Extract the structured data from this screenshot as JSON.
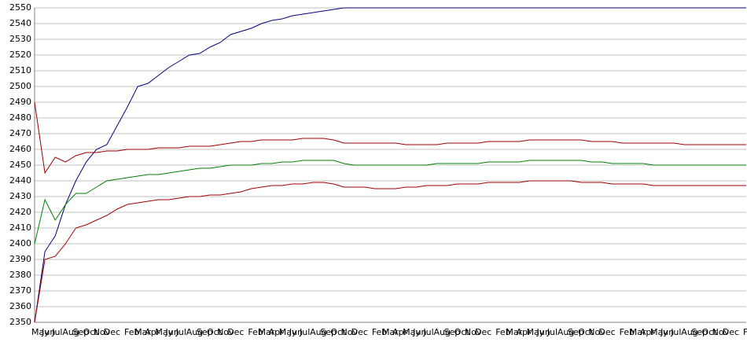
{
  "chart_data": {
    "type": "line",
    "categories": [
      "May",
      "Jun",
      "Jul",
      "Aug",
      "Sep",
      "Oct",
      "Nov",
      "Dec",
      null,
      "Feb",
      "Mar",
      "Apr",
      "May",
      "Jun",
      "Jul",
      "Aug",
      "Sep",
      "Oct",
      "Nov",
      "Dec",
      null,
      "Feb",
      "Mar",
      "Apr",
      "May",
      "Jun",
      "Jul",
      "Aug",
      "Sep",
      "Oct",
      "Nov",
      "Dec",
      null,
      "Feb",
      "Mar",
      "Apr",
      "May",
      "Jun",
      "Jul",
      "Aug",
      "Sep",
      "Oct",
      "Nov",
      "Dec",
      null,
      "Feb",
      "Mar",
      "Apr",
      "May",
      "Jun",
      "Jul",
      "Aug",
      "Sep",
      "Oct",
      "Nov",
      "Dec",
      null,
      "Feb",
      "Mar",
      "Apr",
      "May",
      "Jun",
      "Jul",
      "Aug",
      "Sep",
      "Oct",
      "Nov",
      "Dec",
      null,
      "Feb"
    ],
    "series": [
      {
        "color": "#000080",
        "values": [
          2350,
          2395,
          2405,
          2425,
          2440,
          2452,
          2460,
          2463,
          2475,
          2487,
          2500,
          2502,
          2507,
          2512,
          2516,
          2520,
          2521,
          2525,
          2528,
          2533,
          2535,
          2537,
          2540,
          2542,
          2543,
          2545,
          2546,
          2547,
          2548,
          2549,
          2550,
          2550,
          2550,
          2550,
          2550,
          2550,
          2550,
          2550,
          2550,
          2550,
          2550,
          2550,
          2550,
          2550,
          2550,
          2550,
          2550,
          2550,
          2550,
          2550,
          2550,
          2550,
          2550,
          2550,
          2550,
          2550,
          2550,
          2550,
          2550,
          2550,
          2550,
          2550,
          2550,
          2550,
          2550,
          2550,
          2550,
          2550,
          2550,
          2550
        ]
      },
      {
        "color": "#a00000",
        "values": [
          2490,
          2445,
          2455,
          2452,
          2456,
          2458,
          2458,
          2459,
          2459,
          2460,
          2460,
          2460,
          2461,
          2461,
          2461,
          2462,
          2462,
          2462,
          2463,
          2464,
          2465,
          2465,
          2466,
          2466,
          2466,
          2466,
          2467,
          2467,
          2467,
          2466,
          2464,
          2464,
          2464,
          2464,
          2464,
          2464,
          2463,
          2463,
          2463,
          2463,
          2464,
          2464,
          2464,
          2464,
          2465,
          2465,
          2465,
          2465,
          2466,
          2466,
          2466,
          2466,
          2466,
          2466,
          2465,
          2465,
          2465,
          2464,
          2464,
          2464,
          2464,
          2464,
          2464,
          2463,
          2463,
          2463,
          2463,
          2463,
          2463,
          2463
        ]
      },
      {
        "color": "#008000",
        "values": [
          2400,
          2428,
          2415,
          2425,
          2432,
          2432,
          2436,
          2440,
          2441,
          2442,
          2443,
          2444,
          2444,
          2445,
          2446,
          2447,
          2448,
          2448,
          2449,
          2450,
          2450,
          2450,
          2451,
          2451,
          2452,
          2452,
          2453,
          2453,
          2453,
          2453,
          2451,
          2450,
          2450,
          2450,
          2450,
          2450,
          2450,
          2450,
          2450,
          2451,
          2451,
          2451,
          2451,
          2451,
          2452,
          2452,
          2452,
          2452,
          2453,
          2453,
          2453,
          2453,
          2453,
          2453,
          2452,
          2452,
          2451,
          2451,
          2451,
          2451,
          2450,
          2450,
          2450,
          2450,
          2450,
          2450,
          2450,
          2450,
          2450,
          2450
        ]
      },
      {
        "color": "#a00000",
        "values": [
          2350,
          2390,
          2392,
          2400,
          2410,
          2412,
          2415,
          2418,
          2422,
          2425,
          2426,
          2427,
          2428,
          2428,
          2429,
          2430,
          2430,
          2431,
          2431,
          2432,
          2433,
          2435,
          2436,
          2437,
          2437,
          2438,
          2438,
          2439,
          2439,
          2438,
          2436,
          2436,
          2436,
          2435,
          2435,
          2435,
          2436,
          2436,
          2437,
          2437,
          2437,
          2438,
          2438,
          2438,
          2439,
          2439,
          2439,
          2439,
          2440,
          2440,
          2440,
          2440,
          2440,
          2439,
          2439,
          2439,
          2438,
          2438,
          2438,
          2438,
          2437,
          2437,
          2437,
          2437,
          2437,
          2437,
          2437,
          2437,
          2437,
          2437
        ]
      }
    ],
    "ylim": [
      2350,
      2550
    ],
    "yticks": [
      2350,
      2360,
      2370,
      2380,
      2390,
      2400,
      2410,
      2420,
      2430,
      2440,
      2450,
      2460,
      2470,
      2480,
      2490,
      2500,
      2510,
      2520,
      2530,
      2540,
      2550
    ],
    "grid": true
  }
}
